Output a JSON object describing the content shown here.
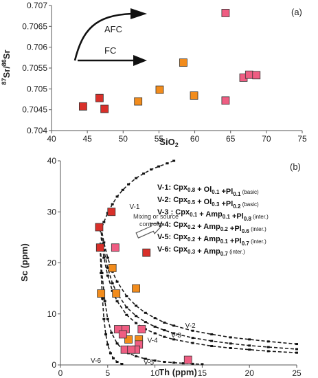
{
  "colors": {
    "dark_red": "#d9302a",
    "orange": "#f28c1c",
    "pink": "#ef5d82",
    "stroke": "#333333"
  },
  "chart_data": [
    {
      "type": "scatter",
      "panel_label": "(a)",
      "xlabel": "SiO",
      "xlabel_sub": "2",
      "ylabel_sup": "87",
      "ylabel_a": "Sr/",
      "ylabel_sup2": "86",
      "ylabel_b": "Sr",
      "xlim": [
        40,
        75
      ],
      "ylim": [
        0.704,
        0.707
      ],
      "xticks": [
        "40",
        "45",
        "50",
        "55",
        "60",
        "65",
        "70",
        "75"
      ],
      "xtick_values": [
        40,
        45,
        50,
        55,
        60,
        65,
        70,
        75
      ],
      "yticks": [
        "0.704",
        "0.7045",
        "0.705",
        "0.7055",
        "0.706",
        "0.7065",
        "0.707"
      ],
      "ytick_values": [
        0.704,
        0.7045,
        0.705,
        0.7055,
        0.706,
        0.7065,
        0.707
      ],
      "annotations": {
        "afc": "AFC",
        "fc": "FC"
      },
      "points": [
        {
          "x": 44.4,
          "y": 0.70458,
          "group": "dark_red"
        },
        {
          "x": 46.7,
          "y": 0.70478,
          "group": "dark_red"
        },
        {
          "x": 47.4,
          "y": 0.70452,
          "group": "dark_red"
        },
        {
          "x": 52.1,
          "y": 0.7047,
          "group": "orange"
        },
        {
          "x": 55.1,
          "y": 0.70498,
          "group": "orange"
        },
        {
          "x": 58.4,
          "y": 0.70563,
          "group": "orange"
        },
        {
          "x": 59.9,
          "y": 0.70484,
          "group": "orange"
        },
        {
          "x": 64.3,
          "y": 0.70682,
          "group": "pink"
        },
        {
          "x": 64.3,
          "y": 0.70472,
          "group": "pink"
        },
        {
          "x": 66.8,
          "y": 0.70527,
          "group": "pink"
        },
        {
          "x": 67.6,
          "y": 0.70534,
          "group": "pink"
        },
        {
          "x": 68.6,
          "y": 0.70533,
          "group": "pink"
        }
      ]
    },
    {
      "type": "scatter",
      "panel_label": "(b)",
      "xlabel": "Th (ppm)",
      "ylabel": "Sc (ppm)",
      "xlim": [
        0,
        25
      ],
      "ylim": [
        0,
        40
      ],
      "xticks": [
        "0",
        "5",
        "10",
        "15",
        "20",
        "25"
      ],
      "xtick_values": [
        0,
        5,
        10,
        15,
        20,
        25
      ],
      "yticks": [
        "0",
        "10",
        "20",
        "30",
        "40"
      ],
      "ytick_values": [
        0,
        10,
        20,
        30,
        40
      ],
      "annotation": "Mixing or source control",
      "annotation_lines": [
        "Mixing or source",
        "control"
      ],
      "legend": [
        {
          "id": "V-1:",
          "parts": [
            [
              "Cpx",
              "0.8"
            ],
            [
              " + Ol",
              "0.1"
            ],
            [
              " +Pl",
              "0.1"
            ]
          ],
          "tag": "(basic)"
        },
        {
          "id": "V-2:",
          "parts": [
            [
              "Cpx",
              "0.5"
            ],
            [
              " + Ol",
              "0.3"
            ],
            [
              " +Pl",
              "0.2"
            ]
          ],
          "tag": "(basic)"
        },
        {
          "id": "V-3 :",
          "parts": [
            [
              "Cpx",
              "0.1"
            ],
            [
              " + Amp",
              "0.1"
            ],
            [
              " +Pl",
              "0.8"
            ]
          ],
          "tag": "(inter.)"
        },
        {
          "id": "V-4:",
          "parts": [
            [
              "Cpx",
              "0.2"
            ],
            [
              " + Amp",
              "0.2"
            ],
            [
              " +Pl",
              "0.6"
            ]
          ],
          "tag": "(inter.)"
        },
        {
          "id": "V-5:",
          "parts": [
            [
              "Cpx",
              "0.2"
            ],
            [
              " + Amp",
              "0.1"
            ],
            [
              " +Pl",
              "0.7"
            ]
          ],
          "tag": "(inter.)"
        },
        {
          "id": "V-6:",
          "parts": [
            [
              "Cpx",
              "0.3"
            ],
            [
              " + Amp",
              "0.7"
            ]
          ],
          "tag": "(inter.)"
        }
      ],
      "curves": [
        {
          "name": "V-1",
          "x": [
            4.2,
            4.6,
            5.0,
            5.5,
            6.0,
            6.6,
            7.2,
            8.0,
            8.8,
            9.6,
            10.4,
            11.3,
            12.0
          ],
          "y": [
            26.0,
            28.0,
            29.8,
            31.5,
            33.0,
            34.3,
            35.4,
            36.6,
            37.5,
            38.3,
            38.9,
            39.5,
            40.0
          ]
        },
        {
          "name": "V-2",
          "x": [
            4.3,
            4.6,
            5.0,
            5.5,
            6.0,
            7.0,
            8.0,
            9.0,
            10.0,
            11.0,
            12.0,
            14.0,
            16.0,
            18.0,
            20.0,
            22.0,
            25.0
          ],
          "y": [
            27.0,
            24.0,
            21.0,
            18.3,
            16.3,
            13.5,
            11.6,
            10.2,
            9.2,
            8.3,
            7.7,
            6.7,
            6.0,
            5.4,
            5.0,
            4.6,
            4.1
          ]
        },
        {
          "name": "V-3",
          "x": [
            4.3,
            4.6,
            5.0,
            5.5,
            6.0,
            7.0,
            8.0,
            9.0,
            10.0,
            11.0,
            12.0,
            14.0,
            16.0,
            18.0,
            20.0,
            22.0,
            25.0
          ],
          "y": [
            26.0,
            22.5,
            19.0,
            16.0,
            14.0,
            11.3,
            9.6,
            8.4,
            7.5,
            6.8,
            6.2,
            5.3,
            4.7,
            4.2,
            3.8,
            3.5,
            3.1
          ]
        },
        {
          "name": "V-4",
          "x": [
            4.3,
            4.6,
            5.0,
            5.5,
            6.0,
            7.0,
            8.0,
            9.0,
            10.0,
            11.0,
            12.0,
            14.0,
            16.0,
            18.0,
            20.0,
            22.0,
            25.0
          ],
          "y": [
            25.0,
            21.0,
            17.5,
            14.5,
            12.5,
            9.8,
            8.2,
            7.0,
            6.2,
            5.5,
            5.0,
            4.3,
            3.7,
            3.3,
            3.0,
            2.7,
            2.4
          ]
        },
        {
          "name": "V-5",
          "x": [
            4.2,
            4.4,
            4.7,
            5.0,
            5.4,
            6.0,
            6.6,
            7.2,
            8.0,
            9.0,
            10.0,
            11.0,
            12.0,
            13.0,
            14.0,
            15.0
          ],
          "y": [
            24.0,
            18.0,
            12.5,
            9.0,
            6.3,
            4.2,
            3.0,
            2.3,
            1.7,
            1.2,
            0.85,
            0.6,
            0.45,
            0.32,
            0.22,
            0.15
          ]
        },
        {
          "name": "V-6",
          "x": [
            4.2,
            4.3,
            4.45,
            4.6,
            4.8,
            5.0,
            5.3,
            5.6,
            6.0,
            6.5
          ],
          "y": [
            23.0,
            18.0,
            13.0,
            9.0,
            6.0,
            4.0,
            2.3,
            1.3,
            0.6,
            0.2
          ]
        }
      ],
      "curve_labels": [
        {
          "text": "V-1",
          "x": 7.3,
          "y": 30.6
        },
        {
          "text": "V-2",
          "x": 13.2,
          "y": 7.3
        },
        {
          "text": "V-3",
          "x": 11.7,
          "y": 5.4
        },
        {
          "text": "V-4",
          "x": 9.2,
          "y": 4.4
        },
        {
          "text": "V-5",
          "x": 8.8,
          "y": 0.1
        },
        {
          "text": "V-6",
          "x": 3.2,
          "y": 0.4
        }
      ],
      "points": [
        {
          "x": 4.1,
          "y": 27,
          "group": "dark_red"
        },
        {
          "x": 4.2,
          "y": 23,
          "group": "dark_red"
        },
        {
          "x": 5.4,
          "y": 30,
          "group": "dark_red"
        },
        {
          "x": 9.1,
          "y": 22,
          "group": "dark_red"
        },
        {
          "x": 4.3,
          "y": 14,
          "group": "orange"
        },
        {
          "x": 5.5,
          "y": 19,
          "group": "orange"
        },
        {
          "x": 5.9,
          "y": 14,
          "group": "orange"
        },
        {
          "x": 8.0,
          "y": 15,
          "group": "orange"
        },
        {
          "x": 7.2,
          "y": 5,
          "group": "orange"
        },
        {
          "x": 8.3,
          "y": 5,
          "group": "orange"
        },
        {
          "x": 5.8,
          "y": 23,
          "group": "pink"
        },
        {
          "x": 6.1,
          "y": 7,
          "group": "pink"
        },
        {
          "x": 6.9,
          "y": 7,
          "group": "pink"
        },
        {
          "x": 6.6,
          "y": 6,
          "group": "pink"
        },
        {
          "x": 8.6,
          "y": 7,
          "group": "pink"
        },
        {
          "x": 8.3,
          "y": 4,
          "group": "pink"
        },
        {
          "x": 8.0,
          "y": 3,
          "group": "pink"
        },
        {
          "x": 6.8,
          "y": 3,
          "group": "pink"
        },
        {
          "x": 7.5,
          "y": 3,
          "group": "pink"
        },
        {
          "x": 13.5,
          "y": 1,
          "group": "pink"
        }
      ]
    }
  ]
}
